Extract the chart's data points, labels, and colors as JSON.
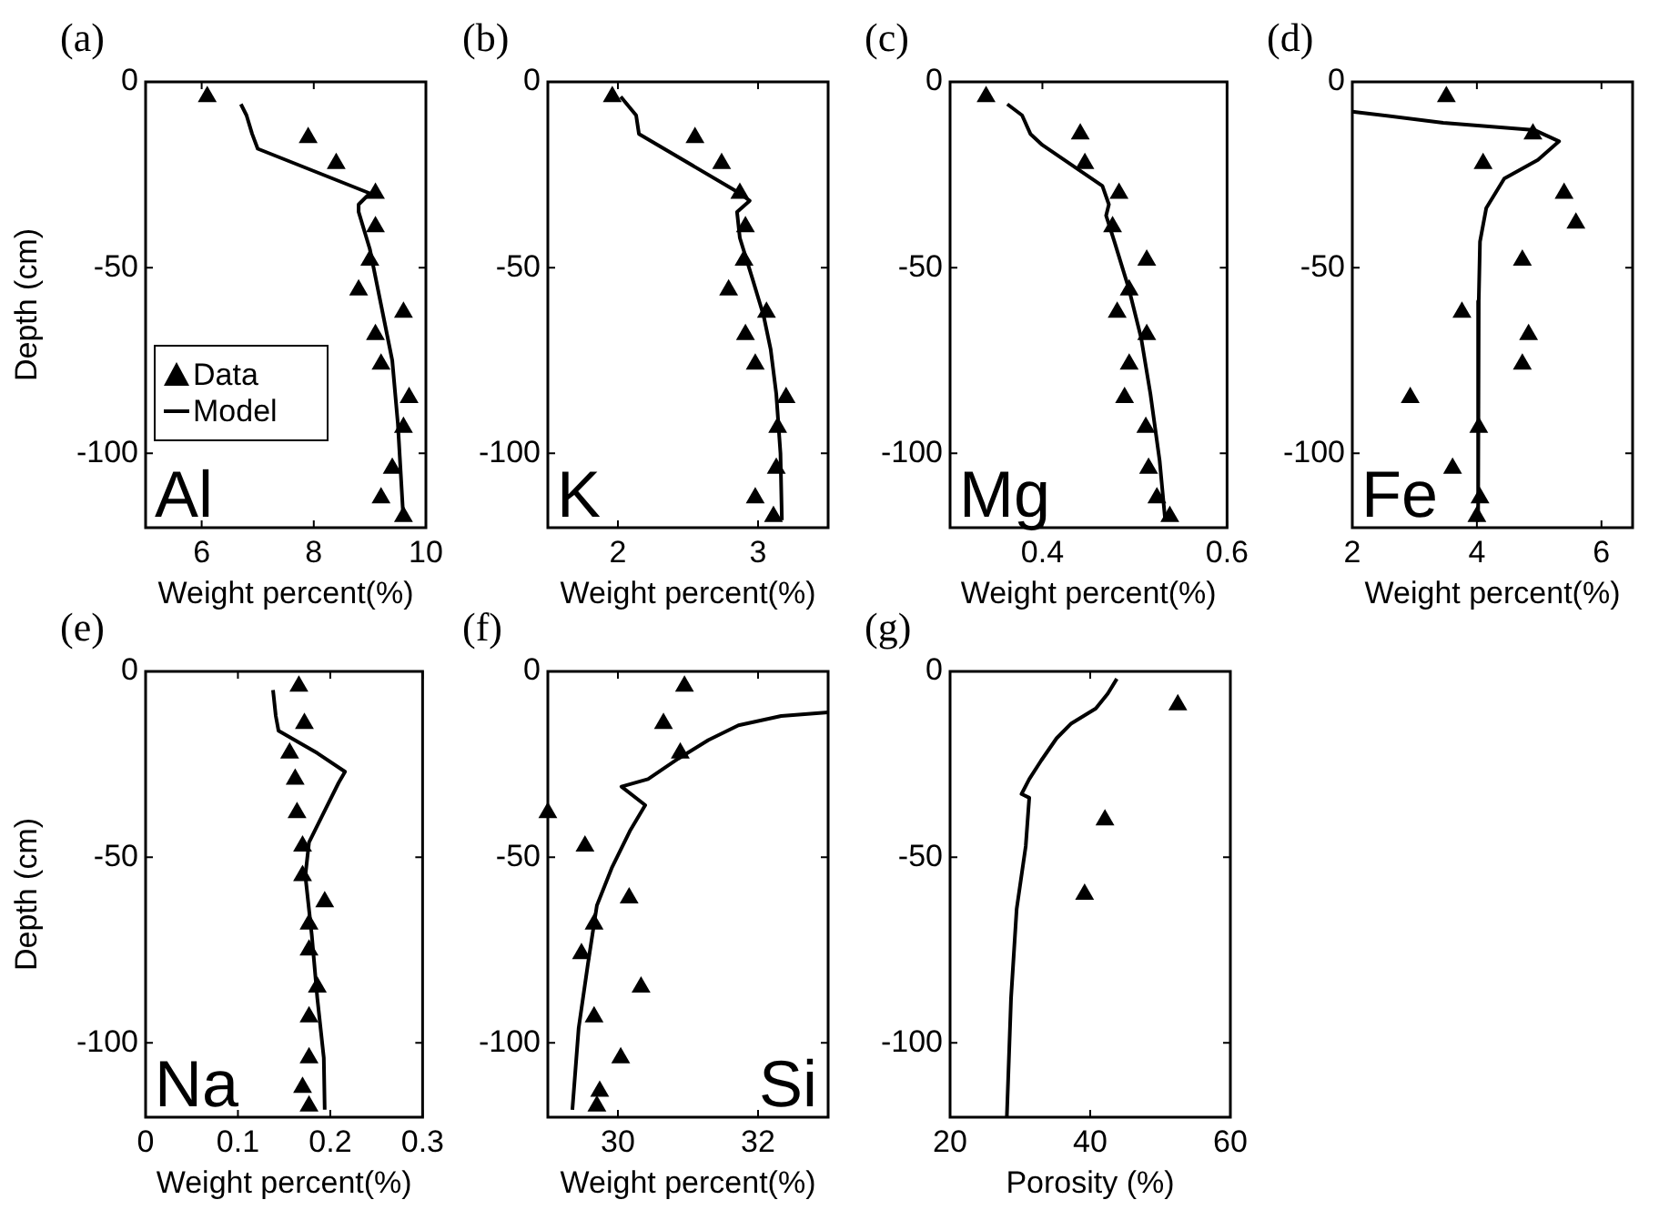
{
  "chart_data": [
    {
      "type": "scatter",
      "title": "(a)",
      "xlabel": "Weight percent(%)",
      "ylabel": "Depth (cm)",
      "xlim": [
        5,
        10
      ],
      "xticks": [
        6,
        8,
        10
      ],
      "ylim": [
        -120,
        0
      ],
      "yticks": [
        0,
        -50,
        -100
      ],
      "legend": "bottom left",
      "annotations": [
        "Al"
      ],
      "series": [
        {
          "name": "Data",
          "marker": "triangle",
          "color": "#000000",
          "x": [
            6.1,
            7.9,
            8.4,
            9.1,
            9.1,
            9.0,
            8.8,
            9.6,
            9.1,
            9.2,
            9.7,
            9.6,
            9.4,
            9.2,
            9.6
          ],
          "values": [
            -4,
            -15,
            -22,
            -30,
            -39,
            -48,
            -56,
            -62,
            -68,
            -76,
            -85,
            -93,
            -104,
            -112,
            -117
          ]
        },
        {
          "name": "Model",
          "type": "line",
          "color": "#000000",
          "x": [
            6.7,
            6.8,
            6.9,
            7.0,
            9.0,
            8.8,
            8.8,
            9.0,
            9.2,
            9.4,
            9.5,
            9.6
          ],
          "values": [
            -6,
            -9,
            -14,
            -18,
            -30,
            -33,
            -35,
            -45,
            -60,
            -75,
            -92,
            -118
          ]
        }
      ]
    },
    {
      "type": "scatter",
      "title": "(b)",
      "xlabel": "Weight percent(%)",
      "xlim": [
        1.5,
        3.5
      ],
      "xticks": [
        2,
        3
      ],
      "ylim": [
        -120,
        0
      ],
      "yticks": [
        0,
        -50,
        -100
      ],
      "annotations": [
        "K"
      ],
      "series": [
        {
          "marker": "triangle",
          "color": "#000000",
          "x": [
            1.96,
            2.55,
            2.74,
            2.87,
            2.91,
            2.9,
            2.79,
            3.06,
            2.91,
            2.98,
            3.2,
            3.14,
            3.13,
            2.98,
            3.11
          ],
          "values": [
            -4,
            -15,
            -22,
            -30,
            -39,
            -48,
            -56,
            -62,
            -68,
            -76,
            -85,
            -93,
            -104,
            -112,
            -117
          ]
        },
        {
          "type": "line",
          "color": "#000000",
          "x": [
            2.02,
            2.13,
            2.15,
            2.87,
            2.94,
            2.85,
            2.87,
            2.96,
            3.04,
            3.09,
            3.13,
            3.16,
            3.17
          ],
          "values": [
            -4,
            -9,
            -14,
            -30,
            -32,
            -35,
            -42,
            -53,
            -63,
            -72,
            -84,
            -100,
            -118
          ]
        }
      ]
    },
    {
      "type": "scatter",
      "title": "(c)",
      "xlabel": "Weight percent(%)",
      "xlim": [
        0.3,
        0.6
      ],
      "xticks": [
        0.4,
        0.6
      ],
      "ylim": [
        -120,
        0
      ],
      "yticks": [
        0,
        -50,
        -100
      ],
      "annotations": [
        "Mg"
      ],
      "series": [
        {
          "marker": "triangle",
          "color": "#000000",
          "x": [
            0.339,
            0.441,
            0.446,
            0.483,
            0.476,
            0.513,
            0.494,
            0.481,
            0.513,
            0.494,
            0.489,
            0.512,
            0.515,
            0.524,
            0.538
          ],
          "values": [
            -4,
            -14,
            -22,
            -30,
            -39,
            -48,
            -56,
            -62,
            -68,
            -76,
            -85,
            -93,
            -104,
            -112,
            -117
          ]
        },
        {
          "type": "line",
          "color": "#000000",
          "x": [
            0.362,
            0.378,
            0.387,
            0.4,
            0.465,
            0.472,
            0.469,
            0.478,
            0.494,
            0.507,
            0.517,
            0.527,
            0.533
          ],
          "values": [
            -6,
            -9,
            -14,
            -17,
            -28,
            -33,
            -36,
            -43,
            -56,
            -69,
            -84,
            -102,
            -118
          ]
        }
      ]
    },
    {
      "type": "scatter",
      "title": "(d)",
      "xlabel": "Weight percent(%)",
      "xlim": [
        2,
        6.5
      ],
      "xticks": [
        2,
        4,
        6
      ],
      "ylim": [
        -120,
        0
      ],
      "yticks": [
        0,
        -50,
        -100
      ],
      "annotations": [
        "Fe"
      ],
      "series": [
        {
          "marker": "triangle",
          "color": "#000000",
          "x": [
            3.51,
            4.9,
            4.1,
            5.4,
            5.59,
            4.73,
            3.76,
            4.83,
            4.73,
            2.93,
            4.03,
            3.61,
            4.05,
            4.0
          ],
          "values": [
            -4,
            -14,
            -22,
            -30,
            -38,
            -48,
            -62,
            -68,
            -76,
            -85,
            -93,
            -104,
            -112,
            -117
          ]
        },
        {
          "type": "line",
          "color": "#000000",
          "x": [
            2.0,
            3.46,
            4.93,
            5.32,
            4.98,
            4.44,
            4.15,
            4.05,
            4.03,
            4.02
          ],
          "values": [
            -8,
            -11,
            -13,
            -16,
            -21,
            -26,
            -34,
            -43,
            -59,
            -118
          ]
        }
      ]
    },
    {
      "type": "scatter",
      "title": "(e)",
      "xlabel": "Weight percent(%)",
      "ylabel": "Depth (cm)",
      "xlim": [
        0,
        0.3
      ],
      "xticks": [
        0,
        0.1,
        0.2,
        0.3
      ],
      "ylim": [
        -120,
        0
      ],
      "yticks": [
        0,
        -50,
        -100
      ],
      "annotations": [
        "Na"
      ],
      "series": [
        {
          "marker": "triangle",
          "color": "#000000",
          "x": [
            0.166,
            0.172,
            0.156,
            0.162,
            0.164,
            0.17,
            0.17,
            0.194,
            0.177,
            0.177,
            0.186,
            0.177,
            0.177,
            0.17,
            0.177
          ],
          "values": [
            -4,
            -14,
            -22,
            -29,
            -38,
            -47,
            -55,
            -62,
            -68,
            -75,
            -85,
            -93,
            -104,
            -112,
            -117
          ]
        },
        {
          "type": "line",
          "color": "#000000",
          "x": [
            0.138,
            0.141,
            0.144,
            0.186,
            0.216,
            0.209,
            0.193,
            0.177,
            0.173,
            0.18,
            0.186,
            0.193,
            0.194
          ],
          "values": [
            -5,
            -12,
            -16,
            -22,
            -27,
            -30,
            -38,
            -46,
            -55,
            -71,
            -88,
            -104,
            -118
          ]
        }
      ]
    },
    {
      "type": "scatter",
      "title": "(f)",
      "xlabel": "Weight percent(%)",
      "xlim": [
        29,
        33
      ],
      "xticks": [
        30,
        32
      ],
      "ylim": [
        -120,
        0
      ],
      "yticks": [
        0,
        -50,
        -100
      ],
      "annotations": [
        "Si"
      ],
      "series": [
        {
          "marker": "triangle",
          "color": "#000000",
          "x": [
            30.95,
            30.65,
            30.89,
            29.0,
            29.53,
            30.16,
            29.66,
            29.48,
            30.33,
            29.66,
            30.04,
            29.74,
            29.7
          ],
          "values": [
            -4,
            -14,
            -22,
            -38,
            -47,
            -61,
            -68,
            -76,
            -85,
            -93,
            -104,
            -113,
            -117
          ]
        },
        {
          "type": "line",
          "color": "#000000",
          "x": [
            33.0,
            32.33,
            31.72,
            31.29,
            30.86,
            30.43,
            30.05,
            30.39,
            30.17,
            29.91,
            29.7,
            29.57,
            29.44,
            29.35
          ],
          "values": [
            -11,
            -12,
            -14.5,
            -18.5,
            -23.5,
            -29,
            -31,
            -36,
            -43,
            -53,
            -63,
            -79,
            -96,
            -118
          ]
        }
      ]
    },
    {
      "type": "scatter",
      "title": "(g)",
      "xlabel": "Porosity (%)",
      "xlim": [
        20,
        60
      ],
      "xticks": [
        20,
        40,
        60
      ],
      "ylim": [
        -120,
        0
      ],
      "yticks": [
        0,
        -50,
        -100
      ],
      "series": [
        {
          "marker": "triangle",
          "color": "#000000",
          "x": [
            52.5,
            42.1,
            39.2
          ],
          "values": [
            -9,
            -40,
            -60
          ]
        },
        {
          "type": "line",
          "color": "#000000",
          "x": [
            43.8,
            42.5,
            40.8,
            37.3,
            35.2,
            33.0,
            31.3,
            30.2,
            31.3,
            30.8,
            29.5,
            28.7,
            28.1
          ],
          "values": [
            -2,
            -6,
            -10,
            -14,
            -18,
            -24,
            -29,
            -33,
            -34,
            -47,
            -64,
            -88,
            -120
          ]
        }
      ]
    }
  ]
}
